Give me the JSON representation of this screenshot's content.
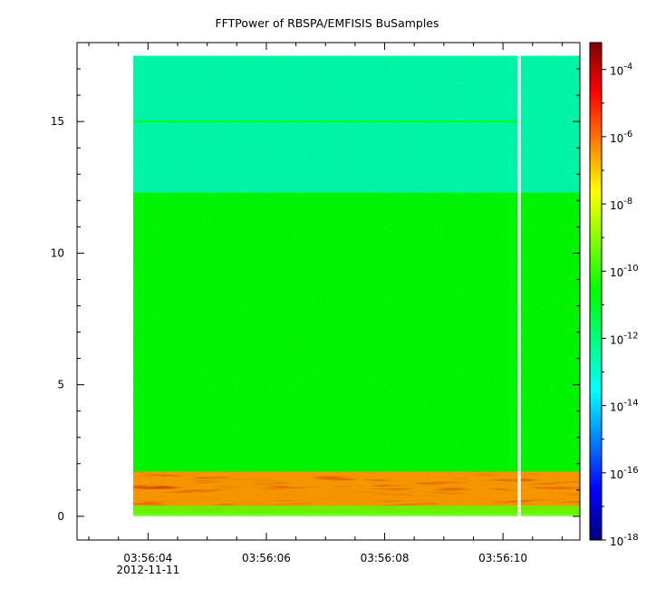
{
  "chart_data": {
    "type": "heatmap",
    "title": "FFTPower of RBSPA/EMFISIS  BuSamples",
    "x_axis": {
      "ticks": [
        "03:56:04",
        "03:56:06",
        "03:56:08",
        "03:56:10"
      ],
      "tick_seconds": [
        4,
        6,
        8,
        10
      ],
      "date_label": "2012-11-11",
      "range_seconds": [
        2.8,
        11.3
      ]
    },
    "y_axis": {
      "ticks": [
        "0",
        "5",
        "10",
        "15"
      ],
      "tick_values": [
        0,
        5,
        10,
        15
      ],
      "range": [
        -0.9,
        18.0
      ]
    },
    "colorbar": {
      "scale": "log",
      "ticks": [
        "10-18",
        "10-16",
        "10-14",
        "10-12",
        "10-10",
        "10-8",
        "10-6",
        "10-4"
      ],
      "tick_exponents": [
        -18,
        -16,
        -14,
        -12,
        -10,
        -8,
        -6,
        -4
      ],
      "range_exponents": [
        -18,
        -3.2
      ]
    },
    "data_extent": {
      "x_start_seconds": 3.75,
      "x_end_seconds": 11.3,
      "y_min": 0,
      "y_max": 17.5,
      "gap_seconds": [
        10.25,
        10.3
      ]
    },
    "bands": [
      {
        "y_from": 12.3,
        "y_to": 17.5,
        "log_power": -12.6
      },
      {
        "y_from": 1.7,
        "y_to": 12.3,
        "log_power": -10.6
      },
      {
        "y_from": 0.1,
        "y_to": 1.7,
        "log_power": -6.5
      }
    ],
    "lines": [
      {
        "y": 15.0,
        "log_power": -10.8
      }
    ]
  },
  "colors": {
    "colormap": [
      "#000080",
      "#0000ff",
      "#0080ff",
      "#00ffff",
      "#00ff80",
      "#00ff00",
      "#80ff00",
      "#ffff00",
      "#ff8000",
      "#ff0000",
      "#800000"
    ]
  }
}
